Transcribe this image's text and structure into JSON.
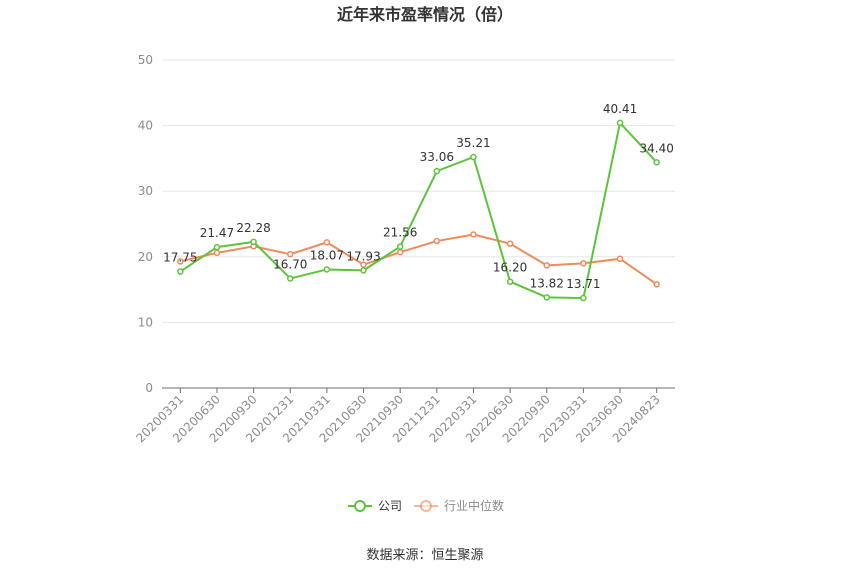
{
  "chart_data": {
    "type": "line",
    "title": "近年来市盈率情况（倍）",
    "xlabel": "",
    "ylabel": "",
    "ylim": [
      0,
      50
    ],
    "yticks": [
      0,
      10,
      20,
      30,
      40,
      50
    ],
    "grid": true,
    "legend_position": "bottom-center",
    "categories": [
      "20200331",
      "20200630",
      "20200930",
      "20201231",
      "20210331",
      "20210630",
      "20210930",
      "20211231",
      "20220331",
      "20220630",
      "20220930",
      "20230331",
      "20230630",
      "20240823"
    ],
    "series": [
      {
        "name": "公司",
        "color": "#5cc43a",
        "values": [
          17.75,
          21.47,
          22.28,
          16.7,
          18.07,
          17.93,
          21.56,
          33.06,
          35.21,
          16.2,
          13.82,
          13.71,
          40.41,
          34.4
        ],
        "labels": [
          "17.75",
          "21.47",
          "22.28",
          "16.70",
          "18.07",
          "17.93",
          "21.56",
          "33.06",
          "35.21",
          "16.20",
          "13.82",
          "13.71",
          "40.41",
          "34.40"
        ]
      },
      {
        "name": "行业中位数",
        "color": "#f08a5d",
        "values": [
          19.3,
          20.6,
          21.6,
          20.4,
          22.2,
          18.8,
          20.7,
          22.4,
          23.4,
          22.0,
          18.7,
          19.0,
          19.7,
          15.8
        ]
      }
    ],
    "source": "数据来源：恒生聚源"
  }
}
